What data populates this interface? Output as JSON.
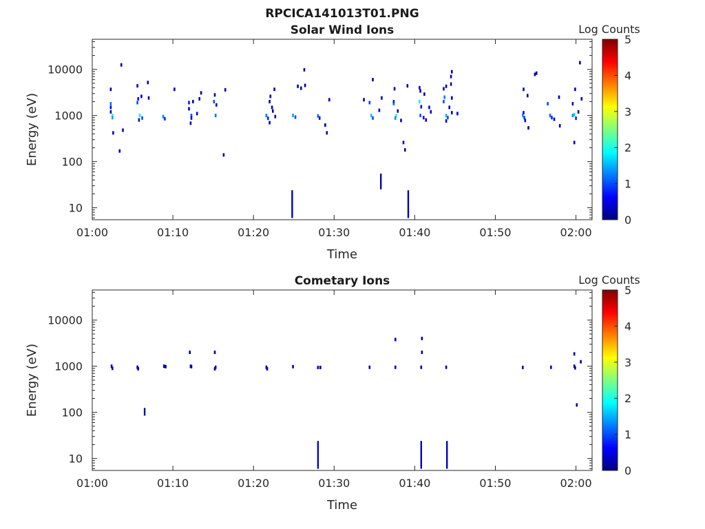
{
  "figure": {
    "title": "RPCICA141013T01.PNG",
    "colorbar_ticks": [
      "0",
      "1",
      "2",
      "3",
      "4",
      "5"
    ],
    "colorbar_colors": [
      "#00007f",
      "#0000ff",
      "#007fff",
      "#00ffff",
      "#7fff7f",
      "#ffff00",
      "#ff7f00",
      "#ff0000",
      "#7f0000"
    ]
  },
  "chart_data": [
    {
      "type": "heatmap",
      "title": "Solar Wind Ions",
      "xlabel": "Time",
      "ylabel": "Energy (eV)",
      "colorbar_label": "Log Counts",
      "xlim": [
        0,
        62
      ],
      "xticks": [
        0,
        10,
        20,
        30,
        40,
        50,
        60
      ],
      "xtick_labels": [
        "01:00",
        "01:10",
        "01:20",
        "01:30",
        "01:40",
        "01:50",
        "02:00"
      ],
      "y_scale": "log",
      "ylim": [
        5.5,
        45000
      ],
      "yticks": [
        10,
        100,
        1000,
        10000
      ],
      "ytick_labels": [
        "10",
        "100",
        "1000",
        "10000"
      ],
      "clim": [
        0,
        5
      ],
      "cells": [
        [
          2.3,
          1800,
          1.2
        ],
        [
          2.3,
          1500,
          0.6
        ],
        [
          2.3,
          1200,
          0.3
        ],
        [
          2.5,
          1000,
          1.9
        ],
        [
          2.5,
          900,
          1.4
        ],
        [
          2.3,
          3700,
          0.2
        ],
        [
          2.6,
          420,
          0.3
        ],
        [
          3.4,
          170,
          0.4
        ],
        [
          3.8,
          480,
          0.3
        ],
        [
          3.6,
          12500,
          0.2
        ],
        [
          5.6,
          1900,
          1.0
        ],
        [
          5.7,
          2300,
          0.7
        ],
        [
          5.6,
          4400,
          0.2
        ],
        [
          5.9,
          1000,
          1.8
        ],
        [
          6.2,
          880,
          1.0
        ],
        [
          5.8,
          800,
          0.5
        ],
        [
          6.1,
          2600,
          0.2
        ],
        [
          7.0,
          2400,
          0.3
        ],
        [
          6.9,
          5200,
          0.2
        ],
        [
          8.8,
          950,
          1.3
        ],
        [
          9.0,
          850,
          0.8
        ],
        [
          10.2,
          3700,
          0.2
        ],
        [
          12.0,
          1900,
          0.7
        ],
        [
          12.0,
          1400,
          0.2
        ],
        [
          12.3,
          1000,
          1.0
        ],
        [
          12.3,
          880,
          0.6
        ],
        [
          12.2,
          680,
          0.2
        ],
        [
          12.5,
          2000,
          0.3
        ],
        [
          13.0,
          1100,
          0.3
        ],
        [
          13.3,
          2300,
          0.2
        ],
        [
          13.5,
          3100,
          0.2
        ],
        [
          15.1,
          2000,
          1.0
        ],
        [
          15.4,
          1700,
          0.5
        ],
        [
          15.3,
          1000,
          1.2
        ],
        [
          15.2,
          2800,
          0.2
        ],
        [
          16.5,
          3600,
          0.2
        ],
        [
          16.3,
          140,
          0.5
        ],
        [
          21.6,
          1000,
          1.2
        ],
        [
          21.8,
          870,
          0.8
        ],
        [
          22.0,
          700,
          0.3
        ],
        [
          22.0,
          2000,
          0.3
        ],
        [
          22.1,
          2600,
          0.2
        ],
        [
          22.3,
          1500,
          0.3
        ],
        [
          22.4,
          1250,
          0.2
        ],
        [
          22.6,
          3700,
          0.2
        ],
        [
          22.7,
          950,
          0.3
        ],
        [
          24.9,
          1000,
          1.4
        ],
        [
          25.2,
          920,
          1.0
        ],
        [
          25.5,
          4300,
          0.2
        ],
        [
          25.9,
          3900,
          0.2
        ],
        [
          26.4,
          4500,
          0.2
        ],
        [
          26.3,
          9800,
          0.2
        ],
        [
          28.0,
          980,
          1.1
        ],
        [
          28.2,
          880,
          0.6
        ],
        [
          28.9,
          620,
          0.2
        ],
        [
          29.1,
          420,
          0.2
        ],
        [
          29.4,
          2200,
          0.3
        ],
        [
          33.7,
          2200,
          0.2
        ],
        [
          34.4,
          1900,
          0.9
        ],
        [
          34.6,
          1000,
          1.6
        ],
        [
          34.8,
          880,
          1.0
        ],
        [
          34.8,
          6000,
          0.2
        ],
        [
          35.6,
          1300,
          0.4
        ],
        [
          35.9,
          2400,
          0.2
        ],
        [
          37.4,
          1800,
          1.2
        ],
        [
          37.4,
          2000,
          0.8
        ],
        [
          37.7,
          1000,
          2.0
        ],
        [
          37.6,
          880,
          1.3
        ],
        [
          37.5,
          3800,
          0.2
        ],
        [
          37.9,
          1250,
          0.3
        ],
        [
          38.3,
          780,
          0.3
        ],
        [
          38.6,
          260,
          0.4
        ],
        [
          38.8,
          180,
          0.3
        ],
        [
          39.1,
          4400,
          0.2
        ],
        [
          40.6,
          2000,
          1.8
        ],
        [
          40.8,
          1550,
          0.5
        ],
        [
          40.7,
          1000,
          1.0
        ],
        [
          41.1,
          900,
          0.6
        ],
        [
          41.4,
          800,
          0.3
        ],
        [
          40.6,
          4000,
          0.3
        ],
        [
          40.7,
          3400,
          0.2
        ],
        [
          41.2,
          2900,
          0.2
        ],
        [
          41.8,
          1500,
          0.3
        ],
        [
          42.0,
          1200,
          0.3
        ],
        [
          43.6,
          2000,
          1.0
        ],
        [
          43.7,
          2500,
          1.2
        ],
        [
          43.9,
          1000,
          1.5
        ],
        [
          44.1,
          900,
          1.0
        ],
        [
          43.9,
          760,
          0.6
        ],
        [
          43.6,
          3800,
          0.4
        ],
        [
          43.9,
          4300,
          0.3
        ],
        [
          44.3,
          1500,
          0.3
        ],
        [
          44.6,
          1150,
          0.4
        ],
        [
          44.6,
          2400,
          0.2
        ],
        [
          44.5,
          4800,
          0.3
        ],
        [
          44.5,
          7000,
          0.3
        ],
        [
          44.6,
          8900,
          0.2
        ],
        [
          45.3,
          1100,
          0.3
        ],
        [
          53.4,
          1000,
          1.4
        ],
        [
          53.5,
          1150,
          0.6
        ],
        [
          53.6,
          900,
          0.9
        ],
        [
          53.7,
          780,
          0.4
        ],
        [
          53.5,
          3700,
          0.2
        ],
        [
          54.0,
          2700,
          0.2
        ],
        [
          54.1,
          540,
          0.2
        ],
        [
          54.9,
          7800,
          0.3
        ],
        [
          55.1,
          8300,
          0.2
        ],
        [
          56.5,
          1800,
          1.0
        ],
        [
          56.8,
          1000,
          1.1
        ],
        [
          57.0,
          900,
          0.8
        ],
        [
          57.3,
          830,
          0.4
        ],
        [
          57.9,
          2500,
          0.2
        ],
        [
          58.0,
          600,
          0.3
        ],
        [
          59.6,
          1000,
          1.3
        ],
        [
          59.8,
          1050,
          1.7
        ],
        [
          60.0,
          870,
          0.8
        ],
        [
          59.6,
          1800,
          0.5
        ],
        [
          59.9,
          3700,
          0.2
        ],
        [
          60.3,
          1200,
          0.3
        ],
        [
          60.7,
          2300,
          0.2
        ],
        [
          60.5,
          14000,
          0.2
        ],
        [
          59.8,
          260,
          0.3
        ]
      ],
      "spikes": [
        [
          24.8,
          6,
          24,
          0.3
        ],
        [
          35.8,
          25,
          55,
          0.3
        ],
        [
          39.2,
          6,
          24,
          0.3
        ]
      ]
    },
    {
      "type": "heatmap",
      "title": "Cometary Ions",
      "xlabel": "Time",
      "ylabel": "Energy (eV)",
      "colorbar_label": "Log Counts",
      "xlim": [
        0,
        62
      ],
      "xticks": [
        0,
        10,
        20,
        30,
        40,
        50,
        60
      ],
      "xtick_labels": [
        "01:00",
        "01:10",
        "01:20",
        "01:30",
        "01:40",
        "01:50",
        "02:00"
      ],
      "y_scale": "log",
      "ylim": [
        5.5,
        45000
      ],
      "yticks": [
        10,
        100,
        1000,
        10000
      ],
      "ytick_labels": [
        "10",
        "100",
        "1000",
        "10000"
      ],
      "clim": [
        0,
        5
      ],
      "cells": [
        [
          2.4,
          1000,
          0.3
        ],
        [
          2.5,
          900,
          0.2
        ],
        [
          5.6,
          950,
          0.3
        ],
        [
          5.7,
          880,
          0.2
        ],
        [
          8.9,
          1000,
          0.3
        ],
        [
          9.1,
          980,
          0.2
        ],
        [
          12.2,
          1000,
          0.4
        ],
        [
          12.3,
          980,
          0.2
        ],
        [
          12.1,
          2000,
          0.2
        ],
        [
          15.3,
          950,
          0.3
        ],
        [
          15.2,
          880,
          0.2
        ],
        [
          15.2,
          2000,
          0.2
        ],
        [
          21.6,
          950,
          0.3
        ],
        [
          21.7,
          880,
          0.2
        ],
        [
          24.9,
          980,
          0.3
        ],
        [
          28.0,
          940,
          0.3
        ],
        [
          28.3,
          940,
          0.2
        ],
        [
          34.4,
          950,
          0.3
        ],
        [
          37.6,
          950,
          0.3
        ],
        [
          37.6,
          3800,
          0.2
        ],
        [
          40.8,
          950,
          0.2
        ],
        [
          40.9,
          4000,
          0.2
        ],
        [
          40.9,
          2000,
          0.2
        ],
        [
          43.9,
          950,
          0.3
        ],
        [
          53.4,
          940,
          0.3
        ],
        [
          56.9,
          950,
          0.3
        ],
        [
          59.8,
          1000,
          0.3
        ],
        [
          59.9,
          920,
          0.2
        ],
        [
          59.8,
          1850,
          0.2
        ],
        [
          60.6,
          1250,
          0.2
        ],
        [
          60.1,
          145,
          0.2
        ]
      ],
      "spikes": [
        [
          6.5,
          85,
          125,
          0.3
        ],
        [
          28.0,
          6,
          24,
          0.3
        ],
        [
          40.8,
          6,
          24,
          0.3
        ],
        [
          44.0,
          6,
          24,
          0.3
        ]
      ]
    }
  ]
}
